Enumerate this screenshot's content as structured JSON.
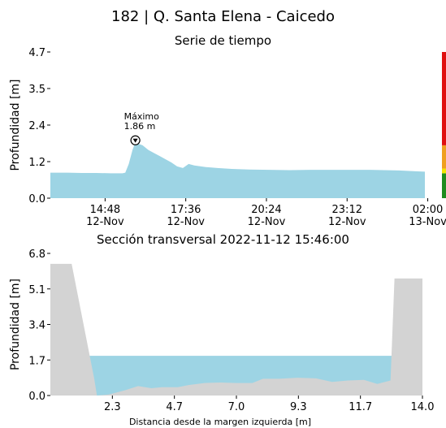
{
  "header": {
    "title": "182 | Q. Santa Elena - Caicedo",
    "subtitle": "Serie de tiempo"
  },
  "chart_data": [
    {
      "type": "area",
      "title": "Serie de tiempo",
      "xlabel": "",
      "ylabel": "Profundidad [m]",
      "ylim": [
        0,
        4.7
      ],
      "yticks": [
        "0.0",
        "1.2",
        "2.4",
        "3.5",
        "4.7"
      ],
      "ytick_values": [
        0,
        1.175,
        2.35,
        3.525,
        4.7
      ],
      "xticks": [
        {
          "time": "14:48",
          "date": "12-Nov"
        },
        {
          "time": "17:36",
          "date": "12-Nov"
        },
        {
          "time": "20:24",
          "date": "12-Nov"
        },
        {
          "time": "23:12",
          "date": "12-Nov"
        },
        {
          "time": "02:00",
          "date": "13-Nov"
        }
      ],
      "xtick_hours": [
        14.8,
        17.6,
        20.4,
        23.2,
        26.0
      ],
      "xlim_hours": [
        12.9,
        25.9
      ],
      "x_hours": [
        12.9,
        13.5,
        14.0,
        14.5,
        15.0,
        15.4,
        15.5,
        15.62,
        15.75,
        15.85,
        15.95,
        16.1,
        16.3,
        16.5,
        16.7,
        16.9,
        17.1,
        17.3,
        17.5,
        17.7,
        17.9,
        18.3,
        18.7,
        19.2,
        19.8,
        20.5,
        21.2,
        22.0,
        23.0,
        24.0,
        25.0,
        25.5,
        25.9
      ],
      "y": [
        0.82,
        0.82,
        0.81,
        0.81,
        0.8,
        0.8,
        0.82,
        1.1,
        1.55,
        1.8,
        1.75,
        1.7,
        1.55,
        1.45,
        1.35,
        1.25,
        1.15,
        1.02,
        0.97,
        1.1,
        1.05,
        1.0,
        0.97,
        0.94,
        0.92,
        0.91,
        0.9,
        0.91,
        0.91,
        0.91,
        0.89,
        0.87,
        0.85
      ],
      "annotation": {
        "label": "Máximo",
        "value": "1.86 m",
        "x_hour": 15.85,
        "y": 1.86
      },
      "threshold_colors": [
        "#1e8c1e",
        "#f3e600",
        "#f0a020",
        "#e01010"
      ],
      "fill_color": "#9dd4e4"
    },
    {
      "type": "area",
      "title": "Sección transversal 2022-11-12 15:46:00",
      "xlabel": "Distancia desde la margen izquierda [m]",
      "ylabel": "Profundidad [m]",
      "ylim": [
        0,
        6.8
      ],
      "xlim": [
        0,
        14.0
      ],
      "yticks": [
        "0.0",
        "1.7",
        "3.4",
        "5.1",
        "6.8"
      ],
      "ytick_values": [
        0,
        1.7,
        3.4,
        5.1,
        6.8
      ],
      "xticks": [
        "2.3",
        "4.7",
        "7.0",
        "9.3",
        "11.7",
        "14.0"
      ],
      "xtick_values": [
        2.333,
        4.667,
        7.0,
        9.333,
        11.667,
        14.0
      ],
      "bed_x": [
        0,
        0.8,
        1.65,
        1.75,
        2.2,
        2.8,
        3.3,
        3.8,
        4.2,
        4.8,
        5.2,
        5.8,
        6.4,
        7.0,
        7.6,
        8.0,
        8.6,
        9.3,
        10.0,
        10.6,
        11.2,
        11.8,
        12.3,
        12.8,
        12.95,
        14.0
      ],
      "bed_y": [
        6.3,
        6.3,
        0.8,
        0.0,
        0.05,
        0.25,
        0.45,
        0.35,
        0.4,
        0.4,
        0.5,
        0.6,
        0.62,
        0.6,
        0.6,
        0.8,
        0.8,
        0.85,
        0.82,
        0.65,
        0.72,
        0.75,
        0.55,
        0.72,
        5.6,
        5.6
      ],
      "water_level": 1.9,
      "water_color": "#9dd4e4",
      "bed_color": "#d3d3d3"
    }
  ]
}
